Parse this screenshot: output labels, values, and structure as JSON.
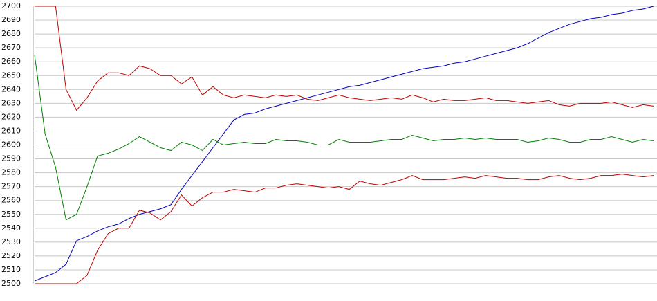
{
  "chart_data": {
    "type": "line",
    "categories": [
      null,
      null,
      null,
      null,
      null,
      null,
      null,
      null,
      null,
      null,
      null,
      null,
      null,
      null,
      null,
      null,
      null,
      null,
      null,
      null,
      null,
      null,
      null,
      null,
      null,
      null,
      null,
      null,
      null,
      null,
      null,
      null,
      null,
      null,
      null,
      null,
      null,
      null,
      null,
      null,
      null,
      null,
      null,
      null,
      null,
      null,
      null,
      null,
      null,
      null,
      null,
      null,
      null,
      null,
      null,
      null,
      null,
      null,
      null,
      null
    ],
    "series": [
      {
        "color": "#0000c0",
        "values": [
          2502,
          2505,
          2508,
          2514,
          2531,
          2534,
          2538,
          2541,
          2543,
          2547,
          2550,
          2552,
          2554,
          2557,
          2568,
          2578,
          2588,
          2598,
          2608,
          2618,
          2622,
          2623,
          2626,
          2628,
          2630,
          2632,
          2634,
          2636,
          2638,
          2640,
          2642,
          2643,
          2645,
          2647,
          2649,
          2651,
          2653,
          2655,
          2656,
          2657,
          2659,
          2660,
          2662,
          2664,
          2666,
          2668,
          2670,
          2673,
          2677,
          2681,
          2684,
          2687,
          2689,
          2691,
          2692,
          2694,
          2695,
          2697,
          2698,
          2700
        ]
      },
      {
        "color": "#c00000",
        "values": [
          2700,
          2700,
          2700,
          2640,
          2625,
          2634,
          2646,
          2652,
          2652,
          2650,
          2657,
          2655,
          2650,
          2650,
          2644,
          2649,
          2636,
          2642,
          2636,
          2634,
          2636,
          2635,
          2634,
          2636,
          2635,
          2636,
          2633,
          2632,
          2634,
          2636,
          2634,
          2633,
          2632,
          2633,
          2634,
          2633,
          2636,
          2634,
          2631,
          2633,
          2632,
          2632,
          2633,
          2634,
          2632,
          2632,
          2631,
          2630,
          2631,
          2632,
          2629,
          2628,
          2630,
          2630,
          2630,
          2631,
          2629,
          2627,
          2629,
          2628
        ]
      },
      {
        "color": "#008000",
        "values": [
          2665,
          2608,
          2584,
          2546,
          2550,
          2570,
          2592,
          2594,
          2597,
          2601,
          2606,
          2602,
          2598,
          2596,
          2602,
          2600,
          2596,
          2604,
          2600,
          2601,
          2602,
          2601,
          2601,
          2604,
          2603,
          2603,
          2602,
          2600,
          2600,
          2604,
          2602,
          2602,
          2602,
          2603,
          2604,
          2604,
          2607,
          2605,
          2603,
          2604,
          2604,
          2605,
          2604,
          2605,
          2604,
          2604,
          2604,
          2602,
          2603,
          2605,
          2604,
          2602,
          2602,
          2604,
          2604,
          2606,
          2604,
          2602,
          2604,
          2603
        ]
      },
      {
        "color": "#c00000",
        "values": [
          2500,
          2500,
          2500,
          2500,
          2500,
          2506,
          2524,
          2536,
          2540,
          2540,
          2553,
          2551,
          2546,
          2552,
          2564,
          2556,
          2562,
          2566,
          2566,
          2568,
          2567,
          2566,
          2569,
          2569,
          2571,
          2572,
          2571,
          2570,
          2569,
          2570,
          2568,
          2574,
          2572,
          2571,
          2573,
          2575,
          2578,
          2575,
          2575,
          2575,
          2576,
          2577,
          2576,
          2578,
          2577,
          2576,
          2576,
          2575,
          2575,
          2577,
          2578,
          2576,
          2575,
          2576,
          2578,
          2578,
          2579,
          2578,
          2577,
          2578
        ]
      }
    ],
    "ylim": [
      2500,
      2700
    ],
    "yticks": [
      2500,
      2510,
      2520,
      2530,
      2540,
      2550,
      2560,
      2570,
      2580,
      2590,
      2600,
      2610,
      2620,
      2630,
      2640,
      2650,
      2660,
      2670,
      2680,
      2690,
      2700
    ],
    "grid": true
  }
}
